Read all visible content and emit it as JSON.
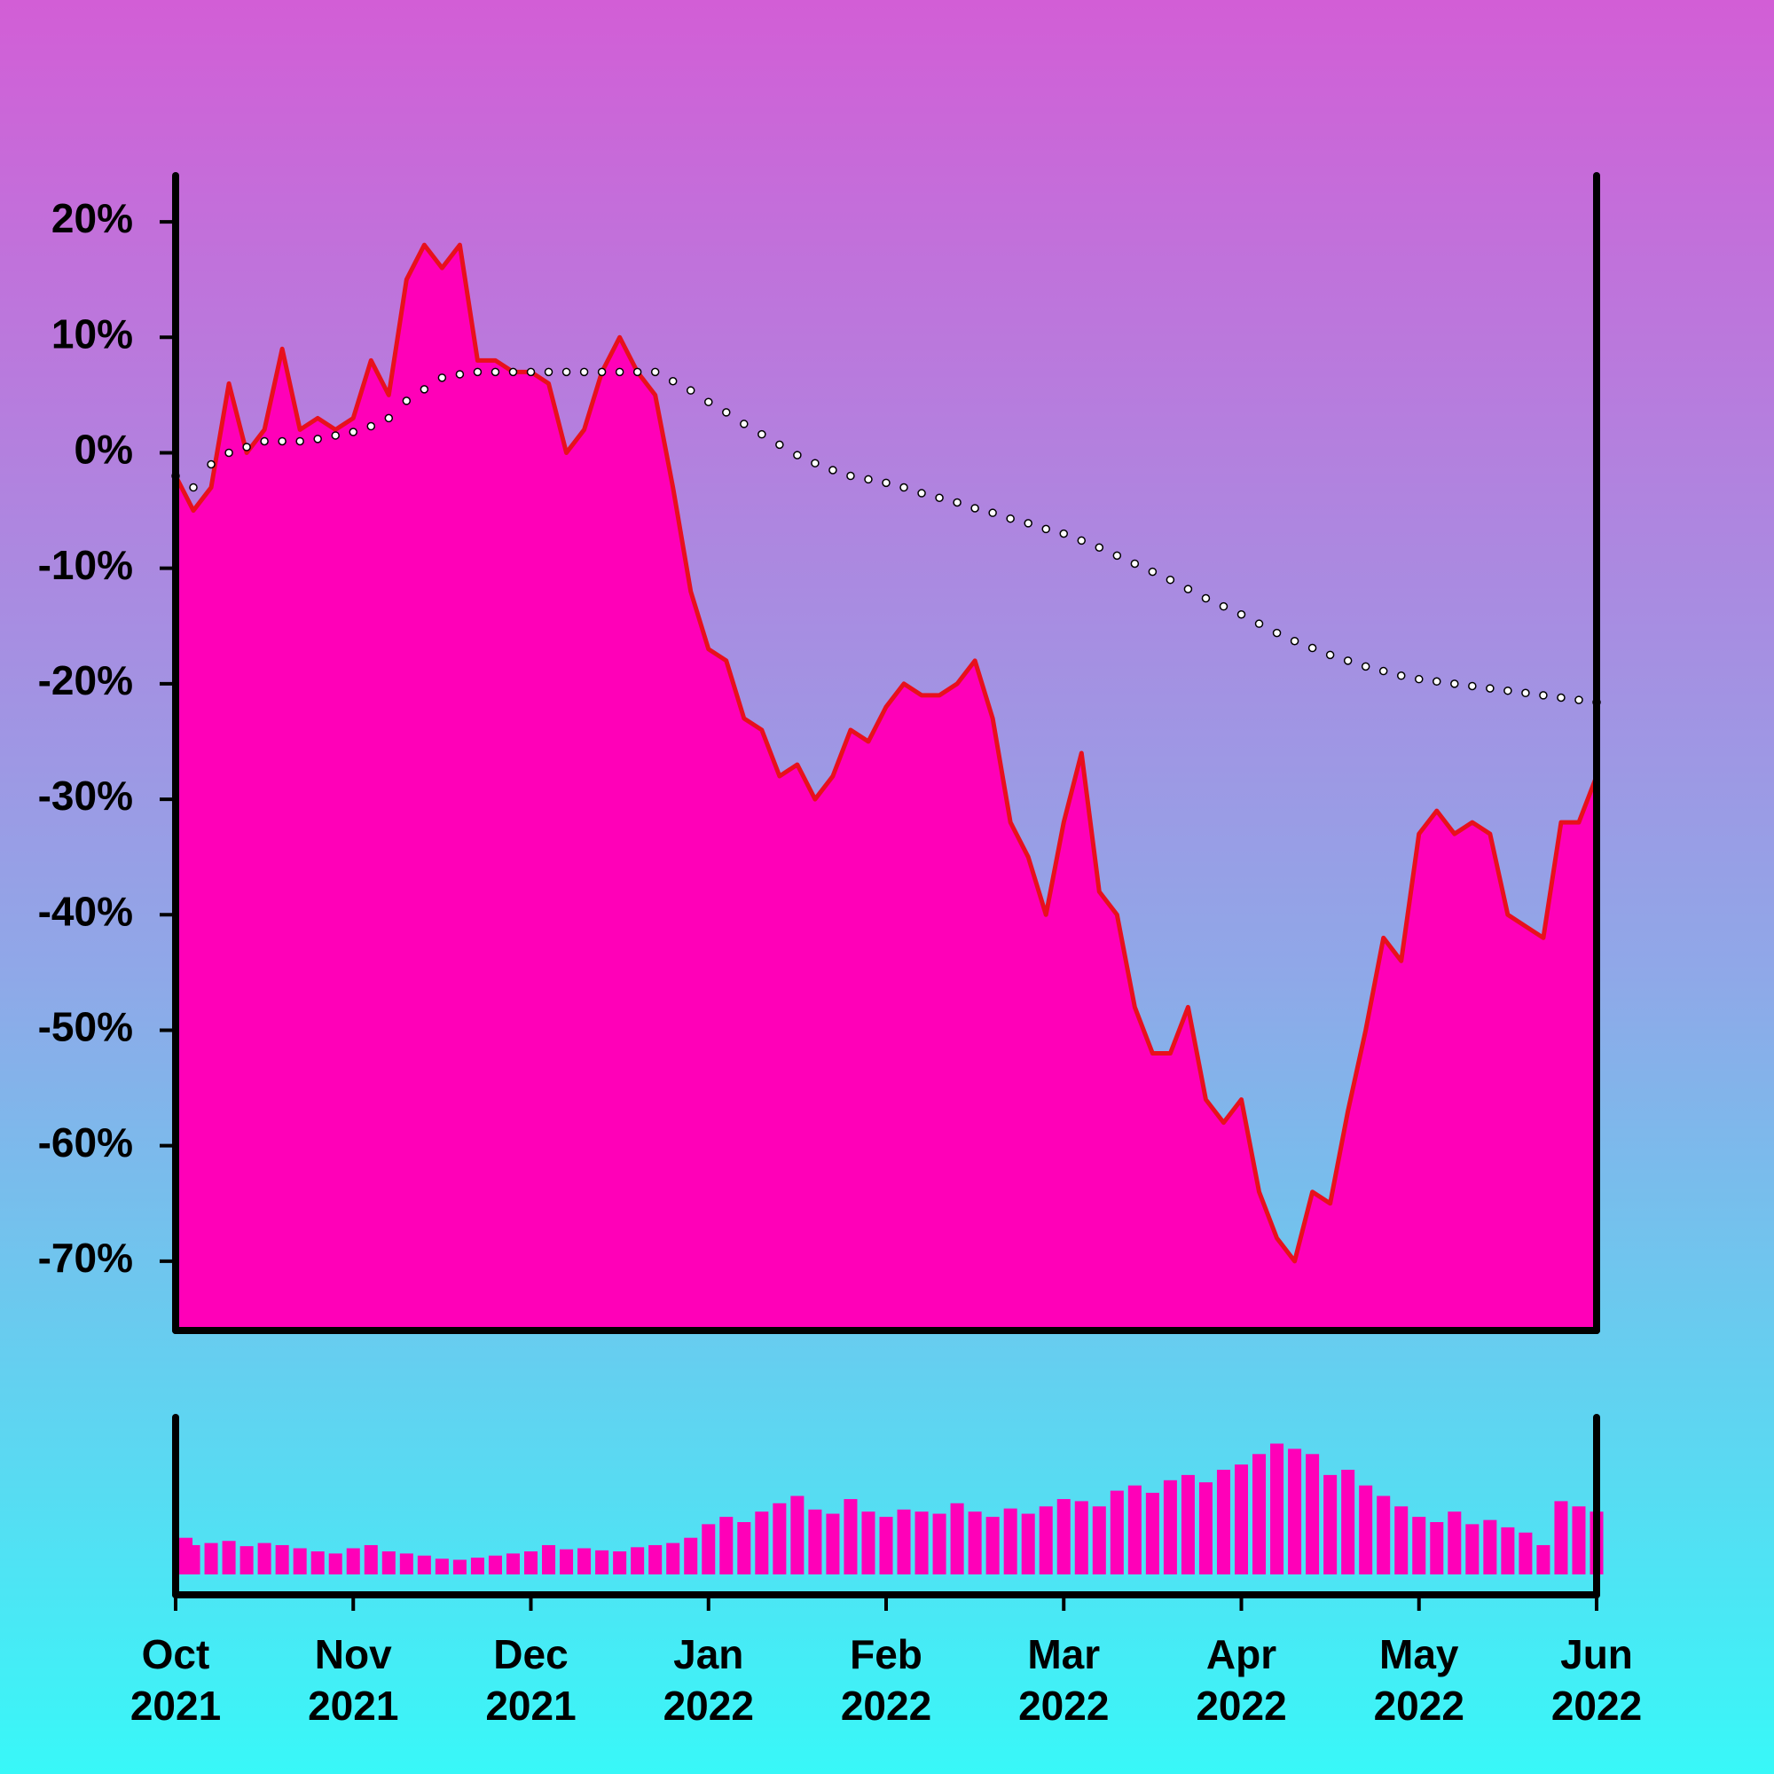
{
  "chart_data": {
    "type": "area",
    "x": [
      0,
      0.1,
      0.2,
      0.3,
      0.4,
      0.5,
      0.6,
      0.7,
      0.8,
      0.9,
      1,
      1.1,
      1.2,
      1.3,
      1.4,
      1.5,
      1.6,
      1.7,
      1.8,
      1.9,
      2,
      2.1,
      2.2,
      2.3,
      2.4,
      2.5,
      2.6,
      2.7,
      2.8,
      2.9,
      3,
      3.1,
      3.2,
      3.3,
      3.4,
      3.5,
      3.6,
      3.7,
      3.8,
      3.9,
      4,
      4.1,
      4.2,
      4.3,
      4.4,
      4.5,
      4.6,
      4.7,
      4.8,
      4.9,
      5,
      5.1,
      5.2,
      5.3,
      5.4,
      5.5,
      5.6,
      5.7,
      5.8,
      5.9,
      6,
      6.1,
      6.2,
      6.3,
      6.4,
      6.5,
      6.6,
      6.7,
      6.8,
      6.9,
      7,
      7.1,
      7.2,
      7.3,
      7.4,
      7.5,
      7.6,
      7.7,
      7.8,
      7.9,
      8
    ],
    "values": [
      -2,
      -5,
      -3,
      6,
      0,
      2,
      9,
      2,
      3,
      2,
      3,
      8,
      5,
      15,
      18,
      16,
      18,
      8,
      8,
      7,
      7,
      6,
      0,
      2,
      7,
      10,
      7,
      5,
      -3,
      -12,
      -17,
      -18,
      -23,
      -24,
      -28,
      -27,
      -30,
      -28,
      -24,
      -25,
      -22,
      -20,
      -21,
      -21,
      -20,
      -18,
      -23,
      -32,
      -35,
      -40,
      -32,
      -26,
      -38,
      -40,
      -48,
      -52,
      -52,
      -48,
      -56,
      -58,
      -56,
      -64,
      -68,
      -70,
      -64,
      -65,
      -57,
      -50,
      -42,
      -44,
      -33,
      -31,
      -33,
      -32,
      -33,
      -40,
      -41,
      -42,
      -32,
      -32,
      -28
    ],
    "color": "#ff00b8",
    "line_color": "#e8101c",
    "moving_average": {
      "values": [
        -2,
        -3,
        -1,
        0,
        0.5,
        1,
        1,
        1,
        1.2,
        1.5,
        1.8,
        2.3,
        3,
        4.5,
        5.5,
        6.5,
        6.8,
        7,
        7,
        7,
        7,
        7,
        7,
        7,
        7,
        7,
        7,
        7,
        6.2,
        5.4,
        4.4,
        3.5,
        2.5,
        1.6,
        0.7,
        -0.2,
        -0.9,
        -1.5,
        -2,
        -2.3,
        -2.6,
        -3,
        -3.5,
        -3.9,
        -4.3,
        -4.8,
        -5.2,
        -5.7,
        -6.1,
        -6.6,
        -7,
        -7.6,
        -8.2,
        -8.9,
        -9.6,
        -10.3,
        -11,
        -11.8,
        -12.6,
        -13.3,
        -14,
        -14.8,
        -15.6,
        -16.3,
        -16.9,
        -17.5,
        -18,
        -18.5,
        -18.9,
        -19.3,
        -19.6,
        -19.8,
        -20,
        -20.2,
        -20.4,
        -20.6,
        -20.8,
        -21,
        -21.2,
        -21.4,
        -21.6
      ],
      "color": "#ffffff"
    },
    "volume": {
      "values": [
        35,
        28,
        30,
        32,
        27,
        30,
        28,
        25,
        22,
        20,
        25,
        28,
        22,
        20,
        18,
        15,
        14,
        16,
        18,
        20,
        22,
        28,
        24,
        25,
        23,
        22,
        26,
        28,
        30,
        35,
        48,
        55,
        50,
        60,
        68,
        75,
        62,
        58,
        72,
        60,
        55,
        62,
        60,
        58,
        68,
        60,
        55,
        63,
        58,
        65,
        72,
        70,
        65,
        80,
        85,
        78,
        90,
        95,
        88,
        100,
        105,
        115,
        125,
        120,
        115,
        95,
        100,
        85,
        75,
        65,
        55,
        50,
        60,
        48,
        52,
        45,
        40,
        28,
        70,
        65,
        60
      ],
      "ylim": [
        0,
        150
      ],
      "color": "#ff00b8"
    },
    "xlim": [
      0,
      8
    ],
    "xticks": [
      {
        "value": 0,
        "label": "Oct 2021"
      },
      {
        "value": 1,
        "label": "Nov 2021"
      },
      {
        "value": 2,
        "label": "Dec 2021"
      },
      {
        "value": 3,
        "label": "Jan 2022"
      },
      {
        "value": 4,
        "label": "Feb 2022"
      },
      {
        "value": 5,
        "label": "Mar 2022"
      },
      {
        "value": 6,
        "label": "Apr 2022"
      },
      {
        "value": 7,
        "label": "May 2022"
      },
      {
        "value": 8,
        "label": "Jun 2022"
      }
    ],
    "ylim": [
      -76,
      24
    ],
    "yticks": [
      {
        "value": 20,
        "label": "20%"
      },
      {
        "value": 10,
        "label": "10%"
      },
      {
        "value": 0,
        "label": "0%"
      },
      {
        "value": -10,
        "label": "-10%"
      },
      {
        "value": -20,
        "label": "-20%"
      },
      {
        "value": -30,
        "label": "-30%"
      },
      {
        "value": -40,
        "label": "-40%"
      },
      {
        "value": -50,
        "label": "-50%"
      },
      {
        "value": -60,
        "label": "-60%"
      },
      {
        "value": -70,
        "label": "-70%"
      }
    ]
  }
}
